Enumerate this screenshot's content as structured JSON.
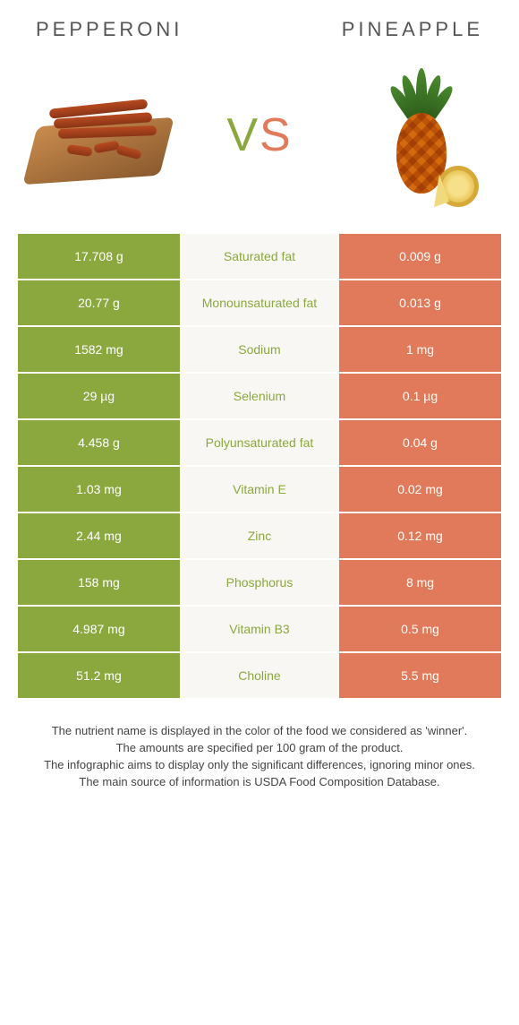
{
  "left_title": "Pepperoni",
  "right_title": "Pineapple",
  "vs_label_v": "V",
  "vs_label_s": "S",
  "colors": {
    "left_green": "#8aa83e",
    "right_coral": "#e07a5a",
    "mid_bg": "#f9f7f3",
    "mid_text_green": "#8aa83e",
    "mid_text_coral": "#e07a5a"
  },
  "rows": [
    {
      "left": "17.708 g",
      "label": "Saturated fat",
      "right": "0.009 g",
      "winner": "left"
    },
    {
      "left": "20.77 g",
      "label": "Monounsaturated fat",
      "right": "0.013 g",
      "winner": "left"
    },
    {
      "left": "1582 mg",
      "label": "Sodium",
      "right": "1 mg",
      "winner": "left"
    },
    {
      "left": "29 µg",
      "label": "Selenium",
      "right": "0.1 µg",
      "winner": "left"
    },
    {
      "left": "4.458 g",
      "label": "Polyunsaturated fat",
      "right": "0.04 g",
      "winner": "left"
    },
    {
      "left": "1.03 mg",
      "label": "Vitamin E",
      "right": "0.02 mg",
      "winner": "left"
    },
    {
      "left": "2.44 mg",
      "label": "Zinc",
      "right": "0.12 mg",
      "winner": "left"
    },
    {
      "left": "158 mg",
      "label": "Phosphorus",
      "right": "8 mg",
      "winner": "left"
    },
    {
      "left": "4.987 mg",
      "label": "Vitamin B3",
      "right": "0.5 mg",
      "winner": "left"
    },
    {
      "left": "51.2 mg",
      "label": "Choline",
      "right": "5.5 mg",
      "winner": "left"
    }
  ],
  "footnote": [
    "The nutrient name is displayed in the color of the food we considered as 'winner'.",
    "The amounts are specified per 100 gram of the product.",
    "The infographic aims to display only the significant differences, ignoring minor ones.",
    "The main source of information is USDA Food Composition Database."
  ]
}
